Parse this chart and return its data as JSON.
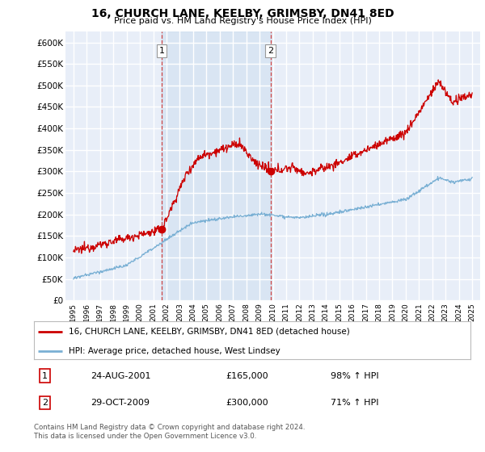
{
  "title": "16, CHURCH LANE, KEELBY, GRIMSBY, DN41 8ED",
  "subtitle": "Price paid vs. HM Land Registry's House Price Index (HPI)",
  "ylim": [
    0,
    625000
  ],
  "yticks": [
    0,
    50000,
    100000,
    150000,
    200000,
    250000,
    300000,
    350000,
    400000,
    450000,
    500000,
    550000,
    600000
  ],
  "ytick_labels": [
    "£0",
    "£50K",
    "£100K",
    "£150K",
    "£200K",
    "£250K",
    "£300K",
    "£350K",
    "£400K",
    "£450K",
    "£500K",
    "£550K",
    "£600K"
  ],
  "bg_color": "#e8eef8",
  "grid_color": "#ffffff",
  "red_color": "#cc0000",
  "blue_color": "#7ab0d4",
  "sale1_value": 165000,
  "sale1_year": 2001.65,
  "sale2_value": 300000,
  "sale2_year": 2009.83,
  "legend_line1": "16, CHURCH LANE, KEELBY, GRIMSBY, DN41 8ED (detached house)",
  "legend_line2": "HPI: Average price, detached house, West Lindsey",
  "table_row1_num": "1",
  "table_row1_date": "24-AUG-2001",
  "table_row1_price": "£165,000",
  "table_row1_hpi": "98% ↑ HPI",
  "table_row2_num": "2",
  "table_row2_date": "29-OCT-2009",
  "table_row2_price": "£300,000",
  "table_row2_hpi": "71% ↑ HPI",
  "footnote": "Contains HM Land Registry data © Crown copyright and database right 2024.\nThis data is licensed under the Open Government Licence v3.0.",
  "vline1_year": 2001.65,
  "vline2_year": 2009.83,
  "shade_color": "#d0dff0"
}
